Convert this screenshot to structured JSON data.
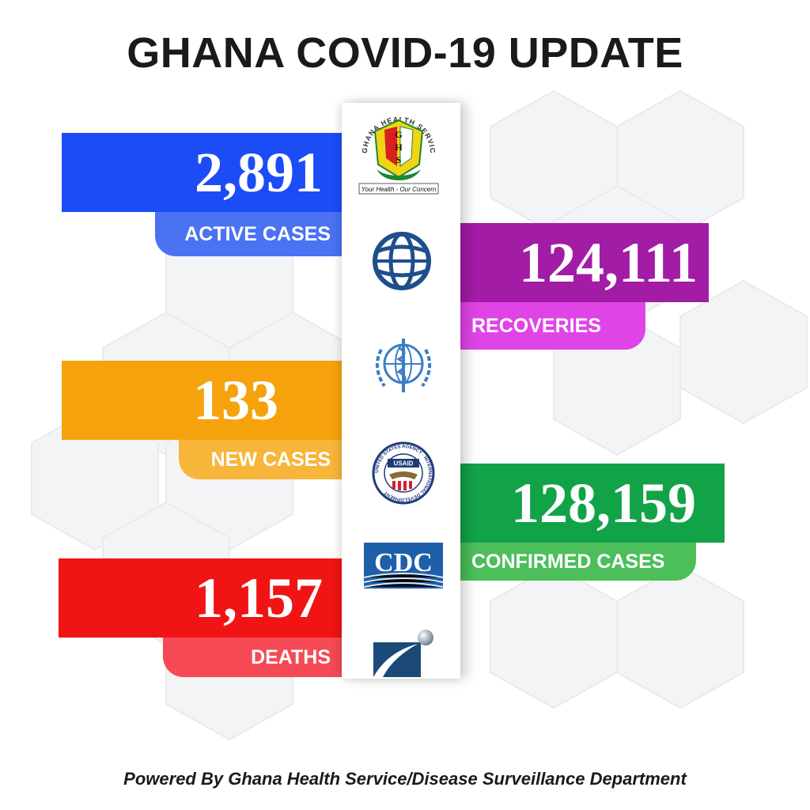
{
  "title": "GHANA COVID-19 UPDATE",
  "stats": {
    "active": {
      "value": "2,891",
      "label": "ACTIVE CASES",
      "box_color": "#1b4cf5",
      "tab_color": "#4a72f2"
    },
    "recoveries": {
      "value": "124,111",
      "label": "RECOVERIES",
      "box_color": "#a21ca6",
      "tab_color": "#e044e6"
    },
    "new_cases": {
      "value": "133",
      "label": "NEW CASES",
      "box_color": "#f5a20d",
      "tab_color": "#f7b53a"
    },
    "confirmed": {
      "value": "128,159",
      "label": "CONFIRMED CASES",
      "box_color": "#12a349",
      "tab_color": "#4cbf5a"
    },
    "deaths": {
      "value": "1,157",
      "label": "DEATHS",
      "box_color": "#f01414",
      "tab_color": "#f54a55"
    }
  },
  "logos": {
    "ghs": {
      "arc_text": "GHANA HEALTH SERVICE",
      "letters": [
        "G",
        "H",
        "S"
      ],
      "tagline": "Your Health - Our Concern"
    },
    "world_bank": {
      "icon": "globe-icon"
    },
    "who": {
      "icon": "who-emblem-icon"
    },
    "usaid": {
      "ring_text": "UNITED STATES AGENCY · INTERNATIONAL DEVELOPMENT",
      "center_text": "USAID"
    },
    "cdc": {
      "text": "CDC"
    },
    "partner": {
      "icon": "partner-swoosh-icon"
    }
  },
  "footer": "Powered By Ghana Health Service/Disease Surveillance Department"
}
